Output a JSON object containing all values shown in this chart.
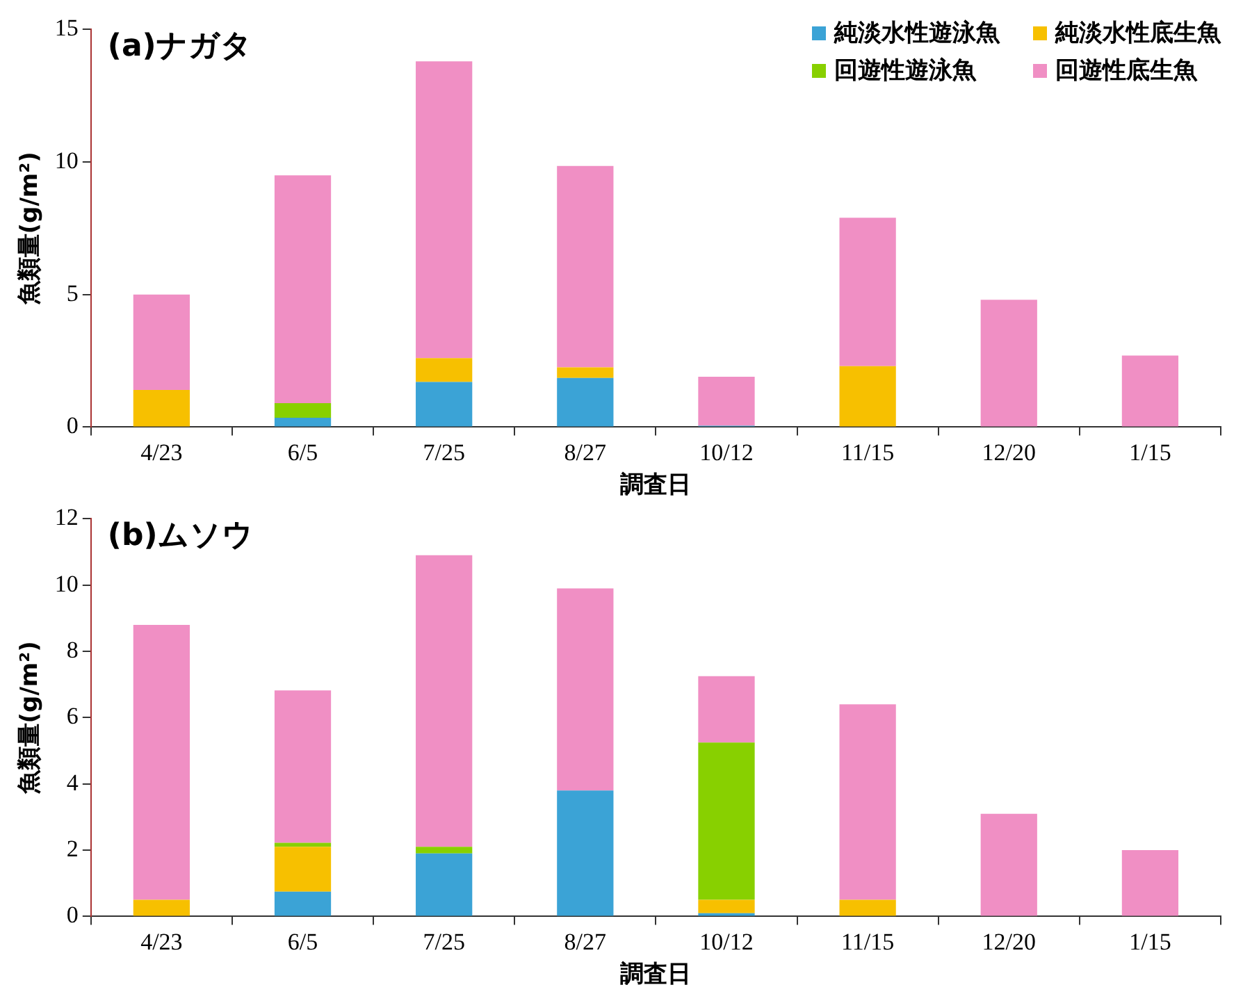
{
  "chart_data": [
    {
      "type": "bar",
      "title": "(a)ナガタ",
      "xlabel": "調査日",
      "ylabel": "魚類量(g/m²)",
      "stacked": true,
      "grid": false,
      "legend": "top right",
      "categories": [
        "4/23",
        "6/5",
        "7/25",
        "8/27",
        "10/12",
        "11/15",
        "12/20",
        "1/15"
      ],
      "ylim": [
        0,
        15
      ],
      "yticks": [
        0,
        5,
        10,
        15
      ],
      "series": [
        {
          "name": "純淡水性遊泳魚",
          "color": "#3ba3d6",
          "values": [
            0,
            0.35,
            1.7,
            1.85,
            0.05,
            0,
            0,
            0
          ]
        },
        {
          "name": "純淡水性底生魚",
          "color": "#f7c000",
          "values": [
            1.4,
            0,
            0.9,
            0.4,
            0,
            2.3,
            0,
            0
          ]
        },
        {
          "name": "回遊性遊泳魚",
          "color": "#88d000",
          "values": [
            0,
            0.55,
            0,
            0,
            0,
            0,
            0,
            0
          ]
        },
        {
          "name": "回遊性底生魚",
          "color": "#f08fc4",
          "values": [
            3.6,
            8.6,
            11.2,
            7.6,
            1.85,
            5.6,
            4.8,
            2.7
          ]
        }
      ]
    },
    {
      "type": "bar",
      "title": "(b)ムソウ",
      "xlabel": "調査日",
      "ylabel": "魚類量(g/m²)",
      "stacked": true,
      "grid": false,
      "categories": [
        "4/23",
        "6/5",
        "7/25",
        "8/27",
        "10/12",
        "11/15",
        "12/20",
        "1/15"
      ],
      "ylim": [
        0,
        12
      ],
      "yticks": [
        0,
        2,
        4,
        6,
        8,
        10,
        12
      ],
      "series": [
        {
          "color": "#3ba3d6",
          "values": [
            0,
            0.75,
            1.9,
            3.8,
            0.1,
            0,
            0,
            0
          ]
        },
        {
          "color": "#f7c000",
          "values": [
            0.5,
            1.35,
            0,
            0,
            0.4,
            0.5,
            0,
            0
          ]
        },
        {
          "color": "#88d000",
          "values": [
            0,
            0.12,
            0.2,
            0,
            4.75,
            0,
            0,
            0
          ]
        },
        {
          "color": "#f08fc4",
          "values": [
            8.3,
            4.6,
            8.8,
            6.1,
            2.0,
            5.9,
            3.1,
            2.0
          ]
        }
      ]
    }
  ]
}
